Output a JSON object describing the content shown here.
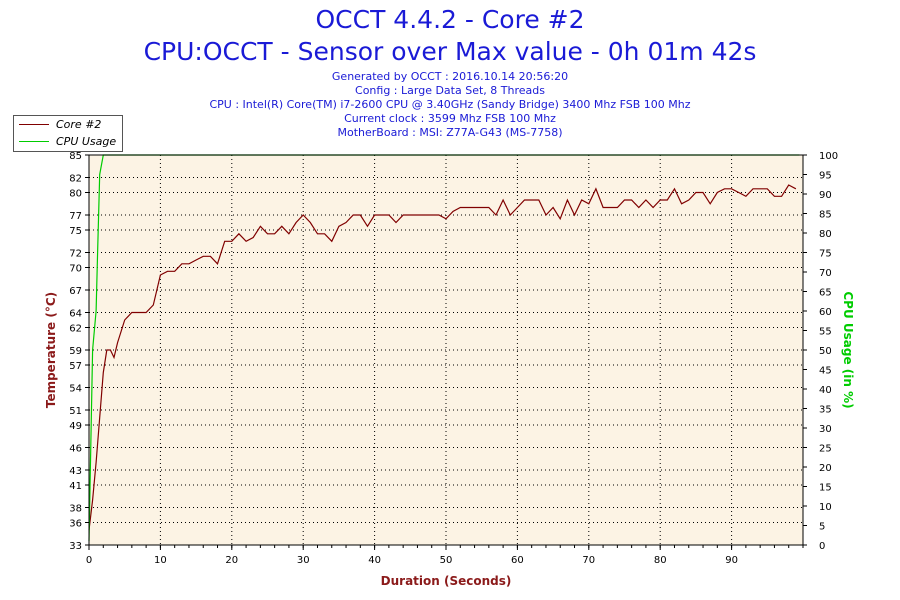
{
  "header": {
    "title": "OCCT 4.4.2 - Core #2",
    "subtitle": "CPU:OCCT - Sensor over Max value - 0h 01m 42s",
    "info_lines": [
      "Generated by OCCT : 2016.10.14 20:56:20",
      "Config : Large Data Set, 8 Threads",
      "CPU : Intel(R) Core(TM) i7-2600 CPU @ 3.40GHz (Sandy Bridge) 3400 Mhz FSB 100 Mhz",
      "Current clock : 3599 Mhz FSB 100 Mhz",
      "MotherBoard : MSI: Z77A-G43 (MS-7758)"
    ]
  },
  "legend": {
    "placement": "top-left",
    "items": [
      {
        "label": "Core #2",
        "color": "#800000"
      },
      {
        "label": "CPU Usage",
        "color": "#00cc00"
      }
    ]
  },
  "chart_data": {
    "type": "line",
    "xlabel": "Duration (Seconds)",
    "ylabel": "Temperature (°C)",
    "y2label": "CPU Usage (in %)",
    "xlim": [
      0,
      100
    ],
    "ylim": [
      33,
      85
    ],
    "y2lim": [
      0,
      100
    ],
    "x_ticks": [
      0,
      10,
      20,
      30,
      40,
      50,
      60,
      70,
      80,
      90
    ],
    "y_ticks": [
      33,
      36,
      38,
      41,
      43,
      46,
      49,
      51,
      54,
      57,
      59,
      62,
      64,
      67,
      70,
      72,
      75,
      77,
      80,
      82,
      85
    ],
    "y2_ticks": [
      0,
      5,
      10,
      15,
      20,
      25,
      30,
      35,
      40,
      45,
      50,
      55,
      60,
      65,
      70,
      75,
      80,
      85,
      90,
      95,
      100
    ],
    "grid": true,
    "colors": {
      "background": "#fcf3e4",
      "grid": "#000000",
      "left_axis_label": "#8b1a1a",
      "right_axis_label": "#00cc00",
      "frame": "#000000"
    },
    "series": [
      {
        "name": "Core #2",
        "axis": "left",
        "color": "#800000",
        "points": [
          [
            0,
            35
          ],
          [
            0.5,
            39
          ],
          [
            1,
            44
          ],
          [
            1.5,
            50
          ],
          [
            2,
            56
          ],
          [
            2.5,
            59
          ],
          [
            3,
            59
          ],
          [
            3.5,
            58
          ],
          [
            4,
            60
          ],
          [
            5,
            63
          ],
          [
            6,
            64
          ],
          [
            7,
            64
          ],
          [
            8,
            64
          ],
          [
            9,
            65
          ],
          [
            10,
            69
          ],
          [
            11,
            69.5
          ],
          [
            12,
            69.5
          ],
          [
            13,
            70.5
          ],
          [
            14,
            70.5
          ],
          [
            15,
            71
          ],
          [
            16,
            71.5
          ],
          [
            17,
            71.5
          ],
          [
            18,
            70.5
          ],
          [
            19,
            73.5
          ],
          [
            20,
            73.5
          ],
          [
            21,
            74.5
          ],
          [
            22,
            73.5
          ],
          [
            23,
            74
          ],
          [
            24,
            75.5
          ],
          [
            25,
            74.5
          ],
          [
            26,
            74.5
          ],
          [
            27,
            75.5
          ],
          [
            28,
            74.5
          ],
          [
            29,
            76
          ],
          [
            30,
            77
          ],
          [
            31,
            76
          ],
          [
            32,
            74.5
          ],
          [
            33,
            74.5
          ],
          [
            34,
            73.5
          ],
          [
            35,
            75.5
          ],
          [
            36,
            76
          ],
          [
            37,
            77
          ],
          [
            38,
            77
          ],
          [
            39,
            75.5
          ],
          [
            40,
            77
          ],
          [
            41,
            77
          ],
          [
            42,
            77
          ],
          [
            43,
            76
          ],
          [
            44,
            77
          ],
          [
            45,
            77
          ],
          [
            46,
            77
          ],
          [
            47,
            77
          ],
          [
            48,
            77
          ],
          [
            49,
            77
          ],
          [
            50,
            76.5
          ],
          [
            51,
            77.5
          ],
          [
            52,
            78
          ],
          [
            53,
            78
          ],
          [
            54,
            78
          ],
          [
            55,
            78
          ],
          [
            56,
            78
          ],
          [
            57,
            77
          ],
          [
            58,
            79
          ],
          [
            59,
            77
          ],
          [
            60,
            78
          ],
          [
            61,
            79
          ],
          [
            62,
            79
          ],
          [
            63,
            79
          ],
          [
            64,
            77
          ],
          [
            65,
            78
          ],
          [
            66,
            76.5
          ],
          [
            67,
            79
          ],
          [
            68,
            77
          ],
          [
            69,
            79
          ],
          [
            70,
            78.5
          ],
          [
            71,
            80.5
          ],
          [
            72,
            78
          ],
          [
            73,
            78
          ],
          [
            74,
            78
          ],
          [
            75,
            79
          ],
          [
            76,
            79
          ],
          [
            77,
            78
          ],
          [
            78,
            79
          ],
          [
            79,
            78
          ],
          [
            80,
            79
          ],
          [
            81,
            79
          ],
          [
            82,
            80.5
          ],
          [
            83,
            78.5
          ],
          [
            84,
            79
          ],
          [
            85,
            80
          ],
          [
            86,
            80
          ],
          [
            87,
            78.5
          ],
          [
            88,
            80
          ],
          [
            89,
            80.5
          ],
          [
            90,
            80.5
          ],
          [
            91,
            80
          ],
          [
            92,
            79.5
          ],
          [
            93,
            80.5
          ],
          [
            94,
            80.5
          ],
          [
            95,
            80.5
          ],
          [
            96,
            79.5
          ],
          [
            97,
            79.5
          ],
          [
            98,
            81
          ],
          [
            99,
            80.5
          ]
        ]
      },
      {
        "name": "CPU Usage",
        "axis": "right",
        "color": "#00cc00",
        "points": [
          [
            0,
            1
          ],
          [
            0.5,
            50
          ],
          [
            1,
            60
          ],
          [
            1.2,
            75
          ],
          [
            1.5,
            95
          ],
          [
            2,
            100
          ],
          [
            99.5,
            100
          ]
        ]
      }
    ]
  }
}
